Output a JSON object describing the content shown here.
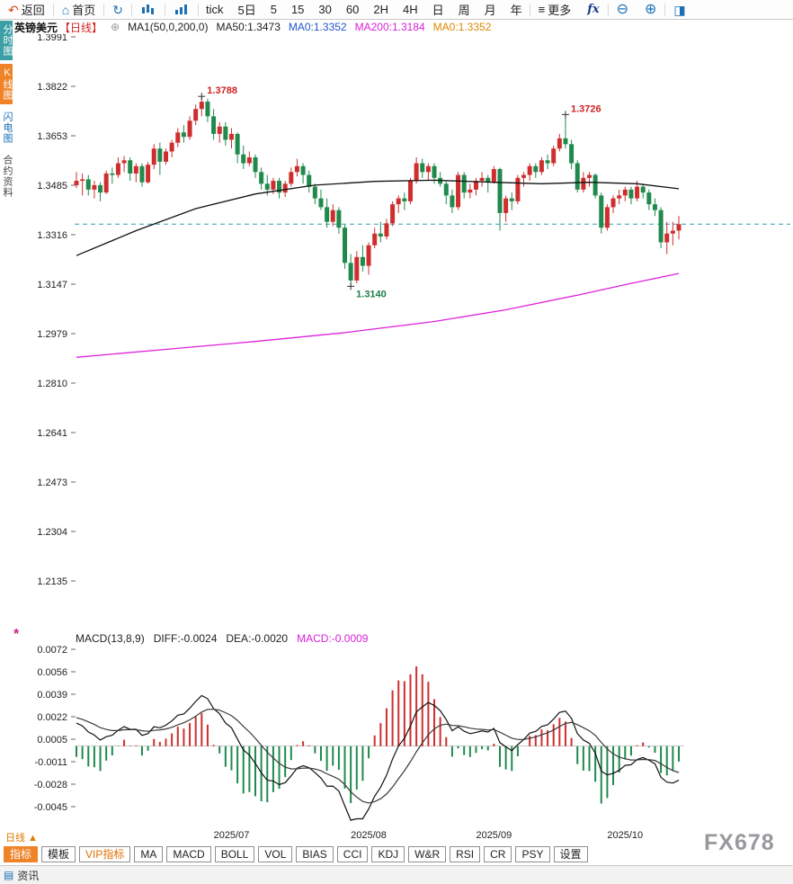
{
  "toolbar": {
    "back": "返回",
    "home": "首页",
    "more": "更多",
    "fx": "fx",
    "periods": [
      {
        "label": "tick",
        "name": "tick"
      },
      {
        "label": "5日",
        "name": "5d"
      },
      {
        "label": "5",
        "name": "5m"
      },
      {
        "label": "15",
        "name": "15m"
      },
      {
        "label": "30",
        "name": "30m"
      },
      {
        "label": "60",
        "name": "60m"
      },
      {
        "label": "2H",
        "name": "2h"
      },
      {
        "label": "4H",
        "name": "4h"
      },
      {
        "label": "日",
        "name": "day"
      },
      {
        "label": "周",
        "name": "week"
      },
      {
        "label": "月",
        "name": "month"
      },
      {
        "label": "年",
        "name": "year"
      }
    ]
  },
  "sidebar": {
    "items": [
      {
        "label": "分时图",
        "name": "time-chart",
        "variant": "teal"
      },
      {
        "label": "K线图",
        "name": "kline-chart",
        "variant": "orange"
      },
      {
        "label": "闪电图",
        "name": "lightning-chart",
        "variant": "blue"
      },
      {
        "label": "合约资料",
        "name": "contract-info",
        "variant": "plain"
      }
    ]
  },
  "chart_header": {
    "symbol": "英镑美元",
    "period": "【日线】",
    "ma_group": "MA1(50,0,200,0)",
    "ma50": "MA50:1.3473",
    "ma0_a": "MA0:1.3352",
    "ma200": "MA200:1.3184",
    "ma0_b": "MA0:1.3352"
  },
  "macd_header": {
    "title": "MACD(13,8,9)",
    "diff": "DIFF:-0.0024",
    "dea": "DEA:-0.0020",
    "macd": "MACD:-0.0009"
  },
  "bottom_bar": {
    "period_label": "日线 ▲",
    "tabs": [
      {
        "label": "指标",
        "name": "indicator",
        "variant": "active"
      },
      {
        "label": "模板",
        "name": "template",
        "variant": "normal"
      },
      {
        "label": "VIP指标",
        "name": "vip-indicator",
        "variant": "vip"
      },
      {
        "label": "MA",
        "name": "ma",
        "variant": "normal"
      },
      {
        "label": "MACD",
        "name": "macd",
        "variant": "normal"
      },
      {
        "label": "BOLL",
        "name": "boll",
        "variant": "normal"
      },
      {
        "label": "VOL",
        "name": "vol",
        "variant": "normal"
      },
      {
        "label": "BIAS",
        "name": "bias",
        "variant": "normal"
      },
      {
        "label": "CCI",
        "name": "cci",
        "variant": "normal"
      },
      {
        "label": "KDJ",
        "name": "kdj",
        "variant": "normal"
      },
      {
        "label": "W&R",
        "name": "wr",
        "variant": "normal"
      },
      {
        "label": "RSI",
        "name": "rsi",
        "variant": "normal"
      },
      {
        "label": "CR",
        "name": "cr",
        "variant": "normal"
      },
      {
        "label": "PSY",
        "name": "psy",
        "variant": "normal"
      },
      {
        "label": "设置",
        "name": "settings",
        "variant": "normal"
      }
    ]
  },
  "watermark": "FX678",
  "status_bar": {
    "label": "资讯"
  },
  "chart_data": {
    "type": "candlestick",
    "title": "英镑美元【日线】",
    "symbol": "英镑美元 (GBP/USD)",
    "interval": "日线",
    "y_axis_labels": [
      "1.3991",
      "1.3822",
      "1.3653",
      "1.3485",
      "1.3316",
      "1.3147",
      "1.2979",
      "1.2810",
      "1.2641",
      "1.2473",
      "1.2304",
      "1.2135"
    ],
    "x_labels": [
      "2025/07",
      "2025/08",
      "2025/09",
      "2025/10"
    ],
    "current_price": 1.3352,
    "colors": {
      "up": "#cf2e2e",
      "down": "#1f8a4c",
      "price_line": "#3a9bb5",
      "diff": "#111111",
      "dea": "#3a3a3a"
    },
    "candles": [
      [
        "2025-05-26",
        1.3485,
        1.353,
        1.3475,
        1.35
      ],
      [
        "2025-05-27",
        1.35,
        1.3525,
        1.345,
        1.3505
      ],
      [
        "2025-05-28",
        1.3505,
        1.352,
        1.345,
        1.347
      ],
      [
        "2025-05-29",
        1.347,
        1.35,
        1.344,
        1.3485
      ],
      [
        "2025-05-30",
        1.3485,
        1.3495,
        1.343,
        1.346
      ],
      [
        "2025-06-02",
        1.346,
        1.3535,
        1.3455,
        1.3525
      ],
      [
        "2025-06-03",
        1.3525,
        1.3545,
        1.349,
        1.352
      ],
      [
        "2025-06-04",
        1.352,
        1.358,
        1.351,
        1.356
      ],
      [
        "2025-06-05",
        1.356,
        1.3585,
        1.353,
        1.357
      ],
      [
        "2025-06-06",
        1.357,
        1.358,
        1.35,
        1.3525
      ],
      [
        "2025-06-09",
        1.3525,
        1.356,
        1.3495,
        1.355
      ],
      [
        "2025-06-10",
        1.355,
        1.356,
        1.348,
        1.3495
      ],
      [
        "2025-06-11",
        1.3495,
        1.3565,
        1.349,
        1.3555
      ],
      [
        "2025-06-12",
        1.3555,
        1.3625,
        1.354,
        1.361
      ],
      [
        "2025-06-13",
        1.361,
        1.363,
        1.352,
        1.3565
      ],
      [
        "2025-06-16",
        1.3565,
        1.361,
        1.3555,
        1.36
      ],
      [
        "2025-06-17",
        1.36,
        1.364,
        1.358,
        1.363
      ],
      [
        "2025-06-18",
        1.363,
        1.368,
        1.3615,
        1.3665
      ],
      [
        "2025-06-19",
        1.3665,
        1.369,
        1.363,
        1.365
      ],
      [
        "2025-06-20",
        1.365,
        1.372,
        1.364,
        1.3705
      ],
      [
        "2025-06-23",
        1.3705,
        1.376,
        1.369,
        1.3745
      ],
      [
        "2025-06-24",
        1.3745,
        1.3788,
        1.372,
        1.377
      ],
      [
        "2025-06-25",
        1.377,
        1.378,
        1.37,
        1.372
      ],
      [
        "2025-06-26",
        1.372,
        1.3745,
        1.364,
        1.366
      ],
      [
        "2025-06-27",
        1.366,
        1.37,
        1.363,
        1.3685
      ],
      [
        "2025-06-30",
        1.3685,
        1.37,
        1.362,
        1.364
      ],
      [
        "2025-07-01",
        1.364,
        1.368,
        1.361,
        1.366
      ],
      [
        "2025-07-02",
        1.366,
        1.3665,
        1.356,
        1.359
      ],
      [
        "2025-07-03",
        1.359,
        1.362,
        1.354,
        1.356
      ],
      [
        "2025-07-04",
        1.356,
        1.36,
        1.355,
        1.358
      ],
      [
        "2025-07-07",
        1.358,
        1.359,
        1.351,
        1.353
      ],
      [
        "2025-07-08",
        1.353,
        1.3545,
        1.347,
        1.349
      ],
      [
        "2025-07-09",
        1.349,
        1.352,
        1.345,
        1.347
      ],
      [
        "2025-07-10",
        1.347,
        1.351,
        1.3455,
        1.35
      ],
      [
        "2025-07-11",
        1.35,
        1.351,
        1.344,
        1.346
      ],
      [
        "2025-07-14",
        1.346,
        1.35,
        1.3445,
        1.349
      ],
      [
        "2025-07-15",
        1.349,
        1.3545,
        1.348,
        1.353
      ],
      [
        "2025-07-16",
        1.353,
        1.3575,
        1.3515,
        1.355
      ],
      [
        "2025-07-17",
        1.355,
        1.356,
        1.349,
        1.352
      ],
      [
        "2025-07-18",
        1.352,
        1.3535,
        1.346,
        1.348
      ],
      [
        "2025-07-21",
        1.348,
        1.349,
        1.342,
        1.344
      ],
      [
        "2025-07-22",
        1.344,
        1.347,
        1.34,
        1.341
      ],
      [
        "2025-07-23",
        1.341,
        1.344,
        1.334,
        1.336
      ],
      [
        "2025-07-24",
        1.336,
        1.342,
        1.3345,
        1.34
      ],
      [
        "2025-07-25",
        1.34,
        1.341,
        1.332,
        1.334
      ],
      [
        "2025-07-28",
        1.334,
        1.335,
        1.32,
        1.322
      ],
      [
        "2025-07-29",
        1.322,
        1.325,
        1.314,
        1.316
      ],
      [
        "2025-07-30",
        1.316,
        1.326,
        1.315,
        1.324
      ],
      [
        "2025-07-31",
        1.324,
        1.328,
        1.319,
        1.321
      ],
      [
        "2025-08-01",
        1.321,
        1.329,
        1.318,
        1.328
      ],
      [
        "2025-08-04",
        1.328,
        1.334,
        1.327,
        1.332
      ],
      [
        "2025-08-05",
        1.332,
        1.336,
        1.329,
        1.331
      ],
      [
        "2025-08-06",
        1.331,
        1.337,
        1.33,
        1.3355
      ],
      [
        "2025-08-07",
        1.3355,
        1.343,
        1.3345,
        1.342
      ],
      [
        "2025-08-08",
        1.342,
        1.345,
        1.339,
        1.344
      ],
      [
        "2025-08-11",
        1.344,
        1.346,
        1.34,
        1.343
      ],
      [
        "2025-08-12",
        1.343,
        1.351,
        1.342,
        1.35
      ],
      [
        "2025-08-13",
        1.35,
        1.358,
        1.349,
        1.356
      ],
      [
        "2025-08-14",
        1.356,
        1.3575,
        1.351,
        1.353
      ],
      [
        "2025-08-15",
        1.353,
        1.356,
        1.35,
        1.355
      ],
      [
        "2025-08-18",
        1.355,
        1.356,
        1.349,
        1.351
      ],
      [
        "2025-08-19",
        1.351,
        1.353,
        1.348,
        1.349
      ],
      [
        "2025-08-20",
        1.349,
        1.35,
        1.342,
        1.345
      ],
      [
        "2025-08-21",
        1.345,
        1.347,
        1.339,
        1.341
      ],
      [
        "2025-08-22",
        1.341,
        1.353,
        1.34,
        1.352
      ],
      [
        "2025-08-25",
        1.352,
        1.353,
        1.344,
        1.346
      ],
      [
        "2025-08-26",
        1.346,
        1.349,
        1.344,
        1.347
      ],
      [
        "2025-08-27",
        1.347,
        1.351,
        1.345,
        1.35
      ],
      [
        "2025-08-28",
        1.35,
        1.353,
        1.348,
        1.351
      ],
      [
        "2025-08-29",
        1.351,
        1.352,
        1.346,
        1.3495
      ],
      [
        "2025-09-01",
        1.3495,
        1.355,
        1.349,
        1.354
      ],
      [
        "2025-09-02",
        1.354,
        1.3545,
        1.333,
        1.339
      ],
      [
        "2025-09-03",
        1.339,
        1.345,
        1.336,
        1.344
      ],
      [
        "2025-09-04",
        1.344,
        1.346,
        1.34,
        1.343
      ],
      [
        "2025-09-05",
        1.343,
        1.352,
        1.342,
        1.351
      ],
      [
        "2025-09-08",
        1.351,
        1.353,
        1.348,
        1.352
      ],
      [
        "2025-09-09",
        1.352,
        1.356,
        1.35,
        1.355
      ],
      [
        "2025-09-10",
        1.355,
        1.356,
        1.351,
        1.353
      ],
      [
        "2025-09-11",
        1.353,
        1.358,
        1.352,
        1.357
      ],
      [
        "2025-09-12",
        1.357,
        1.359,
        1.354,
        1.356
      ],
      [
        "2025-09-15",
        1.356,
        1.362,
        1.355,
        1.361
      ],
      [
        "2025-09-16",
        1.361,
        1.366,
        1.36,
        1.3645
      ],
      [
        "2025-09-17",
        1.3645,
        1.3726,
        1.361,
        1.3625
      ],
      [
        "2025-09-18",
        1.3625,
        1.364,
        1.354,
        1.356
      ],
      [
        "2025-09-19",
        1.356,
        1.357,
        1.346,
        1.347
      ],
      [
        "2025-09-22",
        1.347,
        1.353,
        1.346,
        1.351
      ],
      [
        "2025-09-23",
        1.351,
        1.353,
        1.348,
        1.352
      ],
      [
        "2025-09-24",
        1.352,
        1.3525,
        1.344,
        1.345
      ],
      [
        "2025-09-25",
        1.345,
        1.346,
        1.332,
        1.334
      ],
      [
        "2025-09-26",
        1.334,
        1.342,
        1.333,
        1.341
      ],
      [
        "2025-09-29",
        1.341,
        1.345,
        1.339,
        1.344
      ],
      [
        "2025-09-30",
        1.344,
        1.347,
        1.342,
        1.345
      ],
      [
        "2025-10-01",
        1.345,
        1.348,
        1.343,
        1.347
      ],
      [
        "2025-10-02",
        1.347,
        1.348,
        1.342,
        1.344
      ],
      [
        "2025-10-03",
        1.344,
        1.35,
        1.343,
        1.348
      ],
      [
        "2025-10-06",
        1.348,
        1.349,
        1.344,
        1.346
      ],
      [
        "2025-10-07",
        1.346,
        1.347,
        1.34,
        1.342
      ],
      [
        "2025-10-08",
        1.342,
        1.344,
        1.338,
        1.34
      ],
      [
        "2025-10-09",
        1.34,
        1.341,
        1.327,
        1.329
      ],
      [
        "2025-10-10",
        1.329,
        1.336,
        1.325,
        1.332
      ],
      [
        "2025-10-13",
        1.332,
        1.336,
        1.328,
        1.333
      ],
      [
        "2025-10-14",
        1.333,
        1.338,
        1.33,
        1.3352
      ]
    ],
    "overlays": {
      "ma50": {
        "color": "#111111",
        "points": [
          [
            0,
            1.3245
          ],
          [
            10,
            1.333
          ],
          [
            20,
            1.3405
          ],
          [
            30,
            1.3455
          ],
          [
            40,
            1.3485
          ],
          [
            50,
            1.3498
          ],
          [
            60,
            1.3502
          ],
          [
            70,
            1.3495
          ],
          [
            78,
            1.349
          ],
          [
            86,
            1.3495
          ],
          [
            94,
            1.349
          ],
          [
            101,
            1.3473
          ]
        ]
      },
      "ma200": {
        "color": "#dd22dd",
        "points": [
          [
            0,
            1.2898
          ],
          [
            15,
            1.2925
          ],
          [
            30,
            1.2952
          ],
          [
            45,
            1.2982
          ],
          [
            60,
            1.302
          ],
          [
            72,
            1.306
          ],
          [
            84,
            1.311
          ],
          [
            93,
            1.315
          ],
          [
            101,
            1.3184
          ]
        ]
      }
    },
    "annotations": [
      {
        "label": "1.3788",
        "index": 21,
        "price": 1.3788,
        "color": "#cc2222",
        "placement": "above"
      },
      {
        "label": "1.3726",
        "index": 82,
        "price": 1.3726,
        "color": "#cc2222",
        "placement": "above"
      },
      {
        "label": "1.3140",
        "index": 46,
        "price": 1.314,
        "color": "#1e7d46",
        "placement": "below"
      }
    ],
    "macd": {
      "params": [
        13,
        8,
        9
      ],
      "y_labels": [
        "0.0072",
        "0.0056",
        "0.0039",
        "0.0022",
        "0.0005",
        "-0.0011",
        "-0.0028",
        "-0.0045"
      ]
    }
  }
}
